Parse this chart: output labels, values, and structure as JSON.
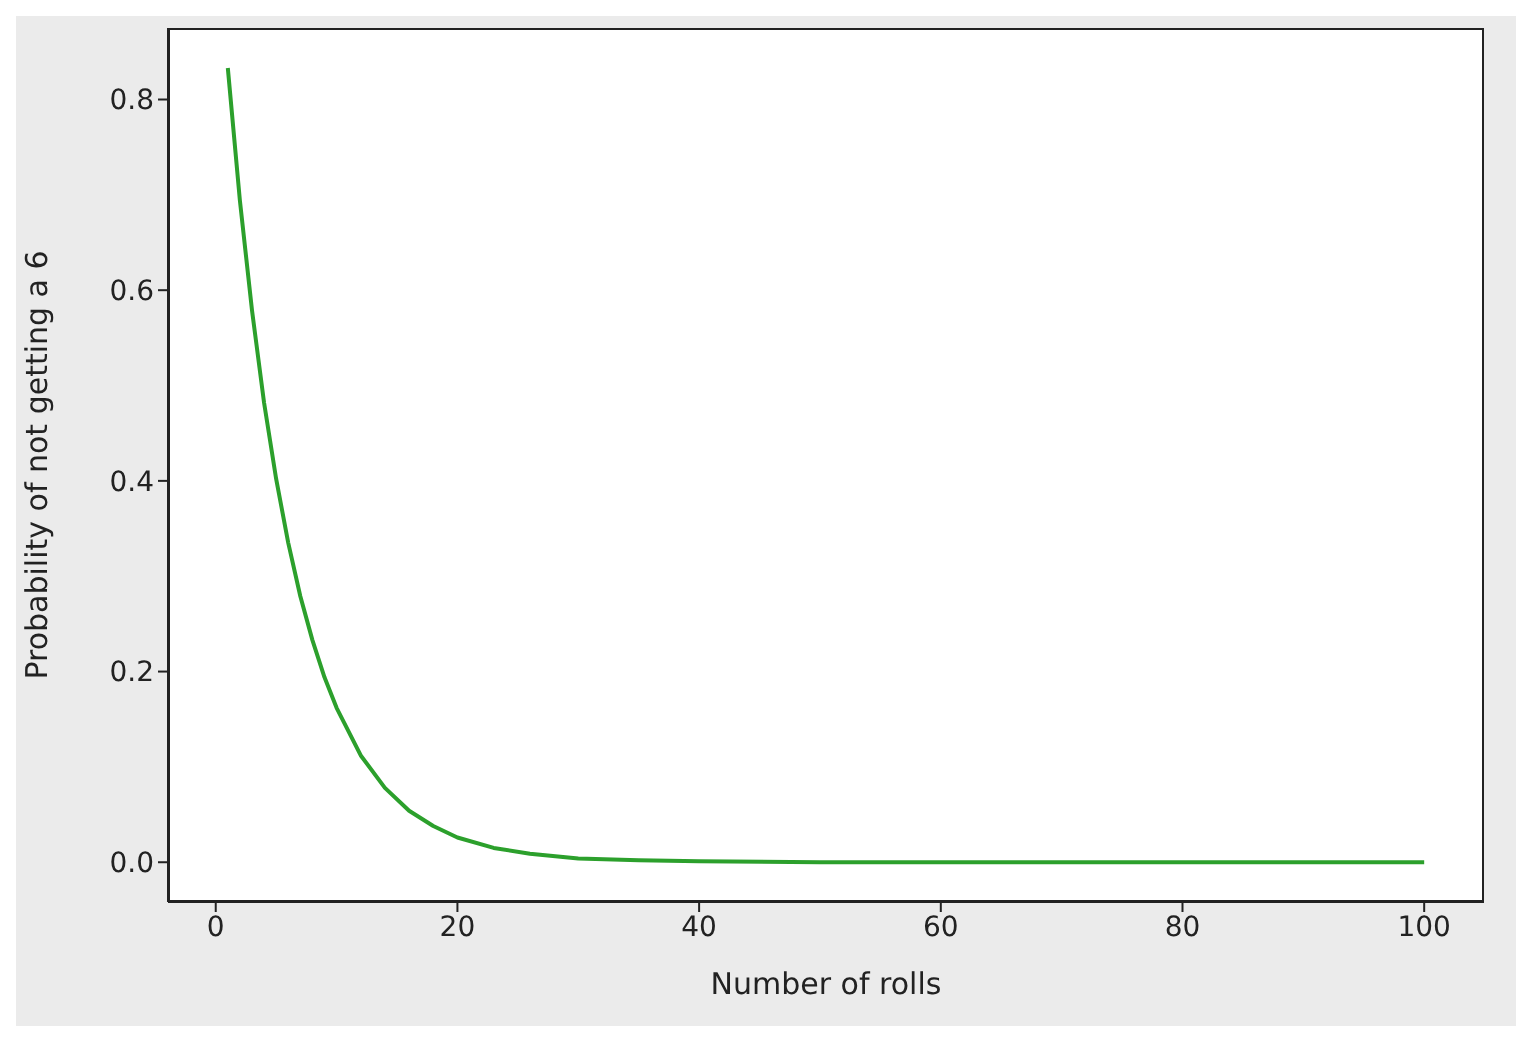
{
  "chart_data": {
    "type": "line",
    "xlabel": "Number of rolls",
    "ylabel": "Probability of not getting a 6",
    "x": [
      1,
      2,
      3,
      4,
      5,
      6,
      7,
      8,
      9,
      10,
      12,
      14,
      16,
      18,
      20,
      23,
      26,
      30,
      35,
      40,
      50,
      60,
      70,
      80,
      90,
      100
    ],
    "series": [
      {
        "color": "#2ca02c",
        "values": [
          0.833,
          0.694,
          0.579,
          0.482,
          0.402,
          0.335,
          0.279,
          0.233,
          0.194,
          0.162,
          0.112,
          0.078,
          0.054,
          0.038,
          0.026,
          0.015,
          0.009,
          0.004,
          0.002,
          0.001,
          0,
          0,
          0,
          0,
          0,
          0
        ]
      }
    ],
    "xlim": [
      -3.95,
      104.95
    ],
    "xticks": [
      0,
      20,
      40,
      60,
      80,
      100
    ],
    "ylim": [
      -0.0417,
      0.875
    ],
    "yticks": [
      {
        "value": 0,
        "label": "0.0"
      },
      {
        "value": 0.2,
        "label": "0.2"
      },
      {
        "value": 0.4,
        "label": "0.4"
      },
      {
        "value": 0.6,
        "label": "0.6"
      },
      {
        "value": 0.8,
        "label": "0.8"
      }
    ],
    "grid": false,
    "legend": false,
    "marker": "none",
    "line_style": "solid"
  }
}
